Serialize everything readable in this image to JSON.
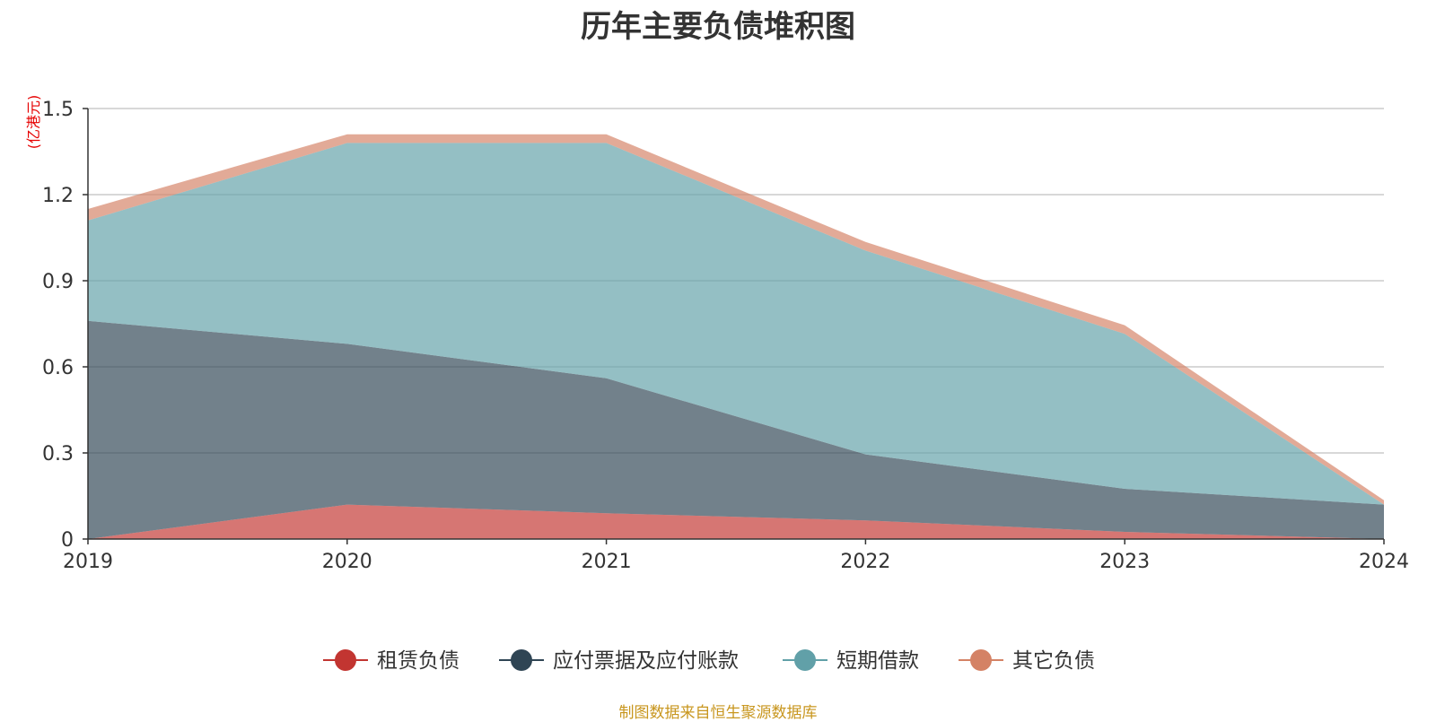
{
  "chart_data": {
    "type": "area",
    "stacked": true,
    "title": "历年主要负债堆积图",
    "ylabel": "(亿港元)",
    "xlabel": "",
    "x": [
      "2019",
      "2020",
      "2021",
      "2022",
      "2023",
      "2024"
    ],
    "ylim": [
      0,
      1.5
    ],
    "yticks": [
      "0",
      "0.3",
      "0.6",
      "0.9",
      "1.2",
      "1.5"
    ],
    "grid": true,
    "legend_position": "bottom",
    "series": [
      {
        "name": "租赁负债",
        "color": "#c23531",
        "values": [
          0.0,
          0.12,
          0.09,
          0.065,
          0.025,
          0.0
        ]
      },
      {
        "name": "应付票据及应付账款",
        "color": "#2f4554",
        "values": [
          0.76,
          0.56,
          0.47,
          0.23,
          0.15,
          0.12
        ]
      },
      {
        "name": "短期借款",
        "color": "#61a0a8",
        "values": [
          0.35,
          0.7,
          0.82,
          0.71,
          0.54,
          0.0
        ]
      },
      {
        "name": "其它负债",
        "color": "#d48265",
        "values": [
          0.04,
          0.03,
          0.03,
          0.03,
          0.03,
          0.015
        ]
      }
    ]
  },
  "source_note": "制图数据来自恒生聚源数据库",
  "colors": {
    "title": "#333333",
    "axis_text": "#333333",
    "unit_label": "#e60000",
    "source_note": "#c8961e",
    "grid": "#cccccc"
  }
}
